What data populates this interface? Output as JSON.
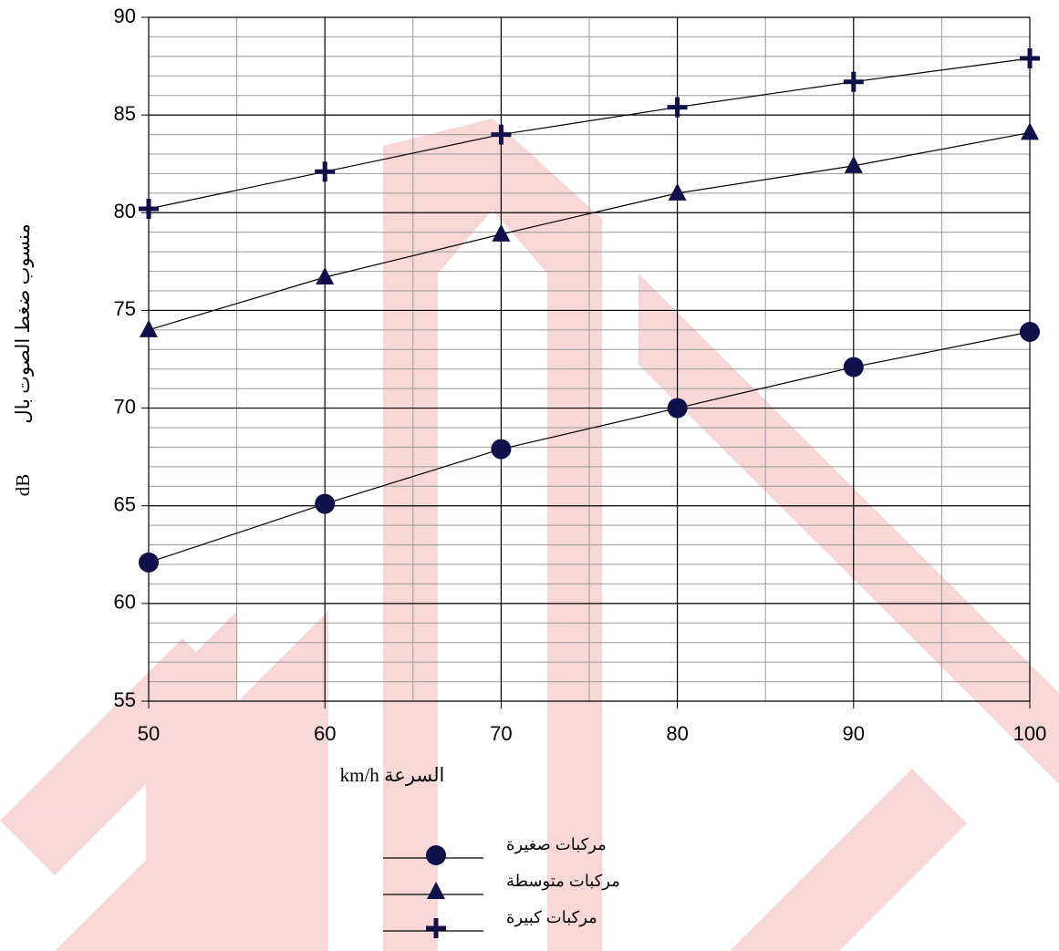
{
  "chart_data": {
    "type": "line",
    "x_label": "السرعة km/h",
    "y_label": "منسوب ضغط الصوت بال",
    "y_unit": "dB",
    "x": [
      50,
      60,
      70,
      80,
      90,
      100
    ],
    "xlim": [
      50,
      100
    ],
    "xticks": [
      50,
      60,
      70,
      80,
      90,
      100
    ],
    "ylim": [
      55,
      90
    ],
    "yticks": [
      55,
      60,
      65,
      70,
      75,
      80,
      85,
      90
    ],
    "grid": true,
    "minor_grid": true,
    "legend": "bottom",
    "series": [
      {
        "name": "مركبات صغيرة",
        "color": "#10104a",
        "marker": "circle",
        "values": [
          62.1,
          65.1,
          67.9,
          70,
          72.1,
          73.9
        ]
      },
      {
        "name": "مركبات متوسطة",
        "color": "#10104a",
        "marker": "triangle",
        "values": [
          74,
          76.7,
          78.9,
          81,
          82.4,
          84.1
        ]
      },
      {
        "name": "مركبات كبيرة",
        "color": "#10104a",
        "marker": "plus",
        "values": [
          80.2,
          82.1,
          84,
          85.4,
          86.7,
          87.9
        ]
      }
    ]
  }
}
